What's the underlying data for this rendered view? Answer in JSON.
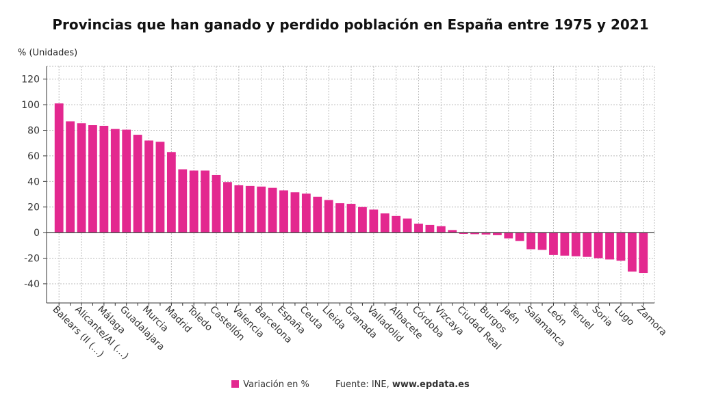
{
  "title": "Provincias que han ganado y perdido población en España entre 1975 y 2021",
  "legend": {
    "series_label": "Variación en %",
    "source_prefix": "Fuente: INE, ",
    "source_site": "www.epdata.es"
  },
  "colors": {
    "bar": "#e3288f",
    "grid": "#bbbbbb",
    "axis": "#333333"
  },
  "chart_data": {
    "type": "bar",
    "title": "Provincias que han ganado y perdido población en España entre 1975 y 2021",
    "ylabel": "% (Unidades)",
    "ylim": [
      -55,
      130
    ],
    "yticks": [
      -40,
      -20,
      0,
      20,
      40,
      60,
      80,
      100,
      120
    ],
    "grid": true,
    "legend_position": "bottom",
    "categories": [
      "Balears (Il (...)",
      "",
      "Alicante/Al (...)",
      "",
      "Málaga",
      "",
      "Guadalajara",
      "",
      "Murcia",
      "",
      "Madrid",
      "",
      "Toledo",
      "",
      "Castellón",
      "",
      "Valencia",
      "",
      "Barcelona",
      "",
      "España",
      "",
      "Ceuta",
      "",
      "Lleida",
      "",
      "Granada",
      "",
      "Valladolid",
      "",
      "Albacete",
      "",
      "Córdoba",
      "",
      "Vizcaya",
      "",
      "Ciudad Real",
      "",
      "Burgos",
      "",
      "Jaén",
      "",
      "Salamanca",
      "",
      "León",
      "",
      "Teruel",
      "",
      "Soria",
      "",
      "Lugo",
      "",
      "Zamora"
    ],
    "series": [
      {
        "name": "Variación en %",
        "values": [
          101,
          87,
          85.5,
          84,
          83.5,
          81,
          80.5,
          76.5,
          72,
          71,
          63,
          49.5,
          48.5,
          48.5,
          45,
          39.5,
          37,
          36.5,
          36,
          35,
          33,
          31.5,
          30.5,
          28,
          25.5,
          23,
          22.5,
          20,
          18,
          15,
          13,
          11,
          7,
          6,
          5,
          2,
          -1,
          -1.2,
          -1.5,
          -2,
          -4.5,
          -6.5,
          -13,
          -13.5,
          -17.5,
          -18,
          -18.5,
          -19,
          -20,
          -21,
          -22,
          -30.5,
          -31.5
        ]
      }
    ]
  }
}
